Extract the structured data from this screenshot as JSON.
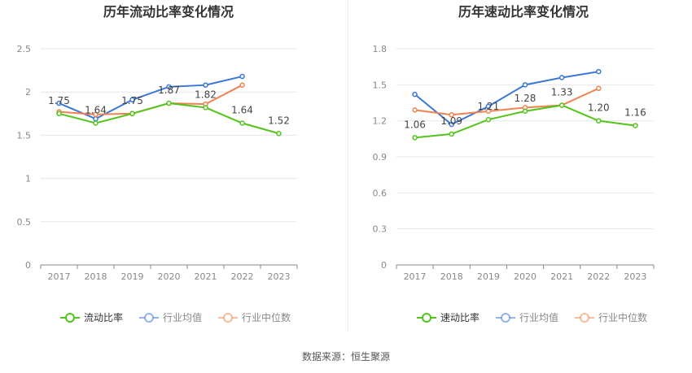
{
  "source_text": "数据来源：恒生聚源",
  "chart_data": [
    {
      "type": "line",
      "title": "历年流动比率变化情况",
      "categories": [
        "2017",
        "2018",
        "2019",
        "2020",
        "2021",
        "2022",
        "2023"
      ],
      "ylim": [
        0,
        2.5
      ],
      "yticks": [
        "0",
        "0.5",
        "1",
        "1.5",
        "2",
        "2.5"
      ],
      "grid": true,
      "legend_position": "bottom",
      "series": [
        {
          "name": "流动比率",
          "color": "#52c41a",
          "values": [
            1.75,
            1.64,
            1.75,
            1.87,
            1.82,
            1.64,
            1.52
          ],
          "labels": [
            "1.75",
            "1.64",
            "1.75",
            "1.87",
            "1.82",
            "1.64",
            "1.52"
          ]
        },
        {
          "name": "行业均值",
          "color": "#3a78d8",
          "values": [
            1.87,
            1.69,
            1.91,
            2.06,
            2.08,
            2.18,
            null
          ]
        },
        {
          "name": "行业中位数",
          "color": "#f0824f",
          "values": [
            1.77,
            1.74,
            1.75,
            1.87,
            1.86,
            2.08,
            null
          ]
        }
      ]
    },
    {
      "type": "line",
      "title": "历年速动比率变化情况",
      "categories": [
        "2017",
        "2018",
        "2019",
        "2020",
        "2021",
        "2022",
        "2023"
      ],
      "ylim": [
        0,
        1.8
      ],
      "yticks": [
        "0",
        "0.3",
        "0.6",
        "0.9",
        "1.2",
        "1.5",
        "1.8"
      ],
      "grid": true,
      "legend_position": "bottom",
      "series": [
        {
          "name": "速动比率",
          "color": "#52c41a",
          "values": [
            1.06,
            1.09,
            1.21,
            1.28,
            1.33,
            1.2,
            1.16
          ],
          "labels": [
            "1.06",
            "1.09",
            "1.21",
            "1.28",
            "1.33",
            "1.20",
            "1.16"
          ]
        },
        {
          "name": "行业均值",
          "color": "#3a78d8",
          "values": [
            1.42,
            1.17,
            1.32,
            1.5,
            1.56,
            1.61,
            null
          ]
        },
        {
          "name": "行业中位数",
          "color": "#f0824f",
          "values": [
            1.29,
            1.25,
            1.28,
            1.31,
            1.33,
            1.47,
            null
          ]
        }
      ]
    }
  ]
}
